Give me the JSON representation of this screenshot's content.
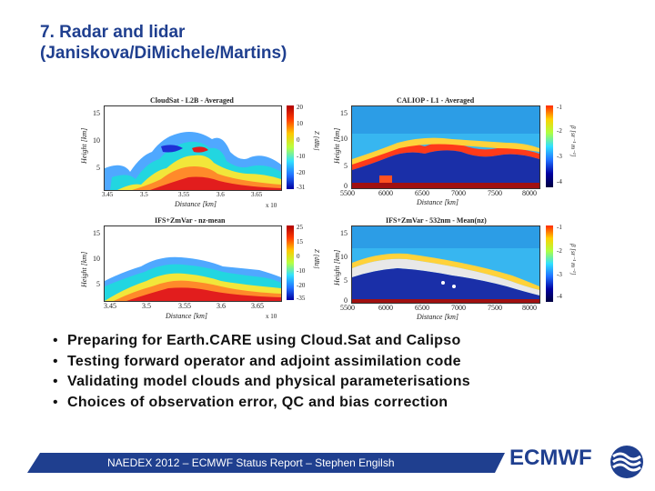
{
  "slide": {
    "title_line1": "7. Radar and lidar",
    "title_line2": "(Janiskova/DiMichele/Martins)"
  },
  "figures": {
    "cloudsat_l2b": {
      "title": "CloudSat - L2B - Averaged",
      "ylabel": "Height [km]",
      "xlabel": "Distance [km]",
      "xticks": [
        "3.45",
        "3.5",
        "3.55",
        "3.6",
        "3.65"
      ],
      "xscale": "x 10",
      "yticks": [
        "15",
        "10",
        "5"
      ],
      "cbar_label": "Z [dBz]",
      "cbar_ticks": [
        "20",
        "10",
        "0",
        "-10",
        "-20",
        "-31"
      ]
    },
    "caliop_l1": {
      "title": "CALIOP - L1 - Averaged",
      "ylabel": "Height [km]",
      "xlabel": "Distance [km]",
      "xticks": [
        "5500",
        "6000",
        "6500",
        "7000",
        "7500",
        "8000"
      ],
      "yticks": [
        "15",
        "10",
        "5",
        "0"
      ],
      "cbar_label": "β [sr⁻¹ m⁻¹]",
      "cbar_ticks": [
        "-1",
        "-2",
        "-3",
        "-4"
      ]
    },
    "ifs_radar": {
      "title": "IFS+ZmVar - nz-mean",
      "ylabel": "Height [km]",
      "xlabel": "Distance [km]",
      "xticks": [
        "3.45",
        "3.5",
        "3.55",
        "3.6",
        "3.65"
      ],
      "xscale": "x 10",
      "yticks": [
        "15",
        "10",
        "5"
      ],
      "cbar_label": "Z [dBz]",
      "cbar_ticks": [
        "25",
        "15",
        "0",
        "-10",
        "-20",
        "-35"
      ]
    },
    "ifs_lidar": {
      "title": "IFS+ZmVar - 532nm - Mean(nz)",
      "ylabel": "Height [km]",
      "xlabel": "Distance [km]",
      "xticks": [
        "5500",
        "6000",
        "6500",
        "7000",
        "7500",
        "8000"
      ],
      "yticks": [
        "15",
        "10",
        "5",
        "0"
      ],
      "cbar_label": "β [sr⁻¹ m⁻¹]",
      "cbar_ticks": [
        "-1",
        "-2",
        "-3",
        "-4"
      ]
    }
  },
  "bullets": [
    "Preparing for Earth.CARE using Cloud.Sat and Calipso",
    "Testing forward operator and adjoint assimilation code",
    "Validating model clouds and physical parameterisations",
    "Choices of observation error, QC and bias correction"
  ],
  "bullet_symbol": "•",
  "footer": {
    "text": "NAEDEX 2012 – ECMWF Status Report – Stephen Engilsh",
    "brand": "ECMWF",
    "logo_icon": "ecmwf-logo-icon",
    "bar_color": "#1f3f8f"
  }
}
